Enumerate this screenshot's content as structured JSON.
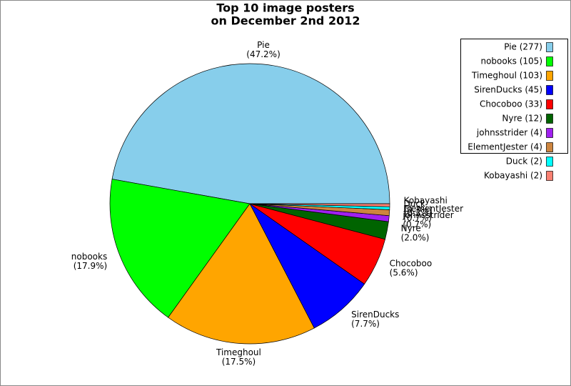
{
  "chart_data": {
    "type": "pie",
    "title": "Top 10 image posters",
    "subtitle": "on December 2nd 2012",
    "categories": [
      "Pie",
      "nobooks",
      "Timeghoul",
      "SirenDucks",
      "Chocoboo",
      "Nyre",
      "johnsstrider",
      "ElementJester",
      "Duck",
      "Kobayashi"
    ],
    "values": [
      277,
      105,
      103,
      45,
      33,
      12,
      4,
      4,
      2,
      2
    ],
    "percent_labels": [
      "(47.2%)",
      "(17.9%)",
      "(17.5%)",
      "(7.7%)",
      "(5.6%)",
      "(2.0%)",
      "(0.7%)",
      "(0.7%)",
      "(0.3%)",
      "(0.3%)"
    ],
    "legend_labels": [
      "Pie (277)",
      "nobooks (105)",
      "Timeghoul (103)",
      "SirenDucks (45)",
      "Chocoboo (33)",
      "Nyre (12)",
      "johnsstrider (4)",
      "ElementJester (4)",
      "Duck (2)",
      "Kobayashi (2)"
    ],
    "colors": [
      "#87ceeb",
      "#00ff00",
      "#ffa500",
      "#0000ff",
      "#ff0000",
      "#006400",
      "#a020f0",
      "#cd853f",
      "#00ffff",
      "#fa8072"
    ],
    "legend": "upper right"
  }
}
